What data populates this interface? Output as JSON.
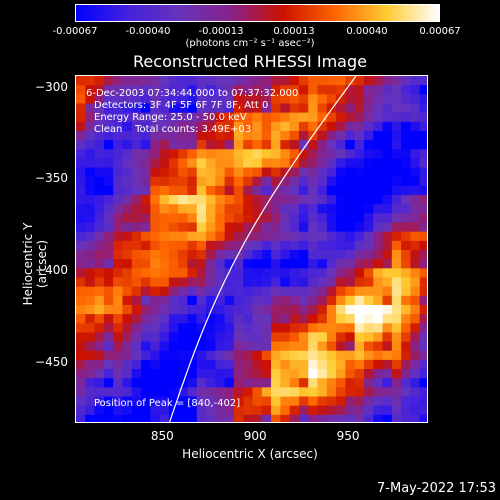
{
  "colorbar": {
    "ticks": [
      "-0.00067",
      "-0.00040",
      "-0.00013",
      "0.00013",
      "0.00040",
      "0.00067"
    ],
    "unit": "(photons cm⁻² s⁻¹ asec⁻²)"
  },
  "info": {
    "time_range": "6-Dec-2003 07:34:44.000 to 07:37:32.000",
    "detectors": "Detectors: 3F 4F 5F 6F 7F 8F, Att 0",
    "energy": "Energy Range: 25.0 - 50.0 keV",
    "clean": "Clean    Total counts: 3.49E+03",
    "peak": "Position of Peak = [840,-402]"
  },
  "timestamp": "7-May-2022 17:53",
  "chart_data": {
    "type": "heatmap",
    "title": "Reconstructed RHESSI Image",
    "xlabel": "Heliocentric X (arcsec)",
    "ylabel": "Heliocentric Y (arcsec)",
    "xlim": [
      803,
      993
    ],
    "ylim": [
      -483,
      -293
    ],
    "xticks": [
      850,
      900,
      950
    ],
    "yticks": [
      -300,
      -350,
      -400,
      -450
    ],
    "colorbar_range": [
      -0.00067,
      0.00067
    ],
    "peak_position": [
      840,
      -402
    ],
    "colors": {
      "scale": [
        "#0000ff",
        "#4422dd",
        "#6633bb",
        "#882288",
        "#cc1100",
        "#ff6600",
        "#ffcc33",
        "#ffffff"
      ]
    }
  }
}
